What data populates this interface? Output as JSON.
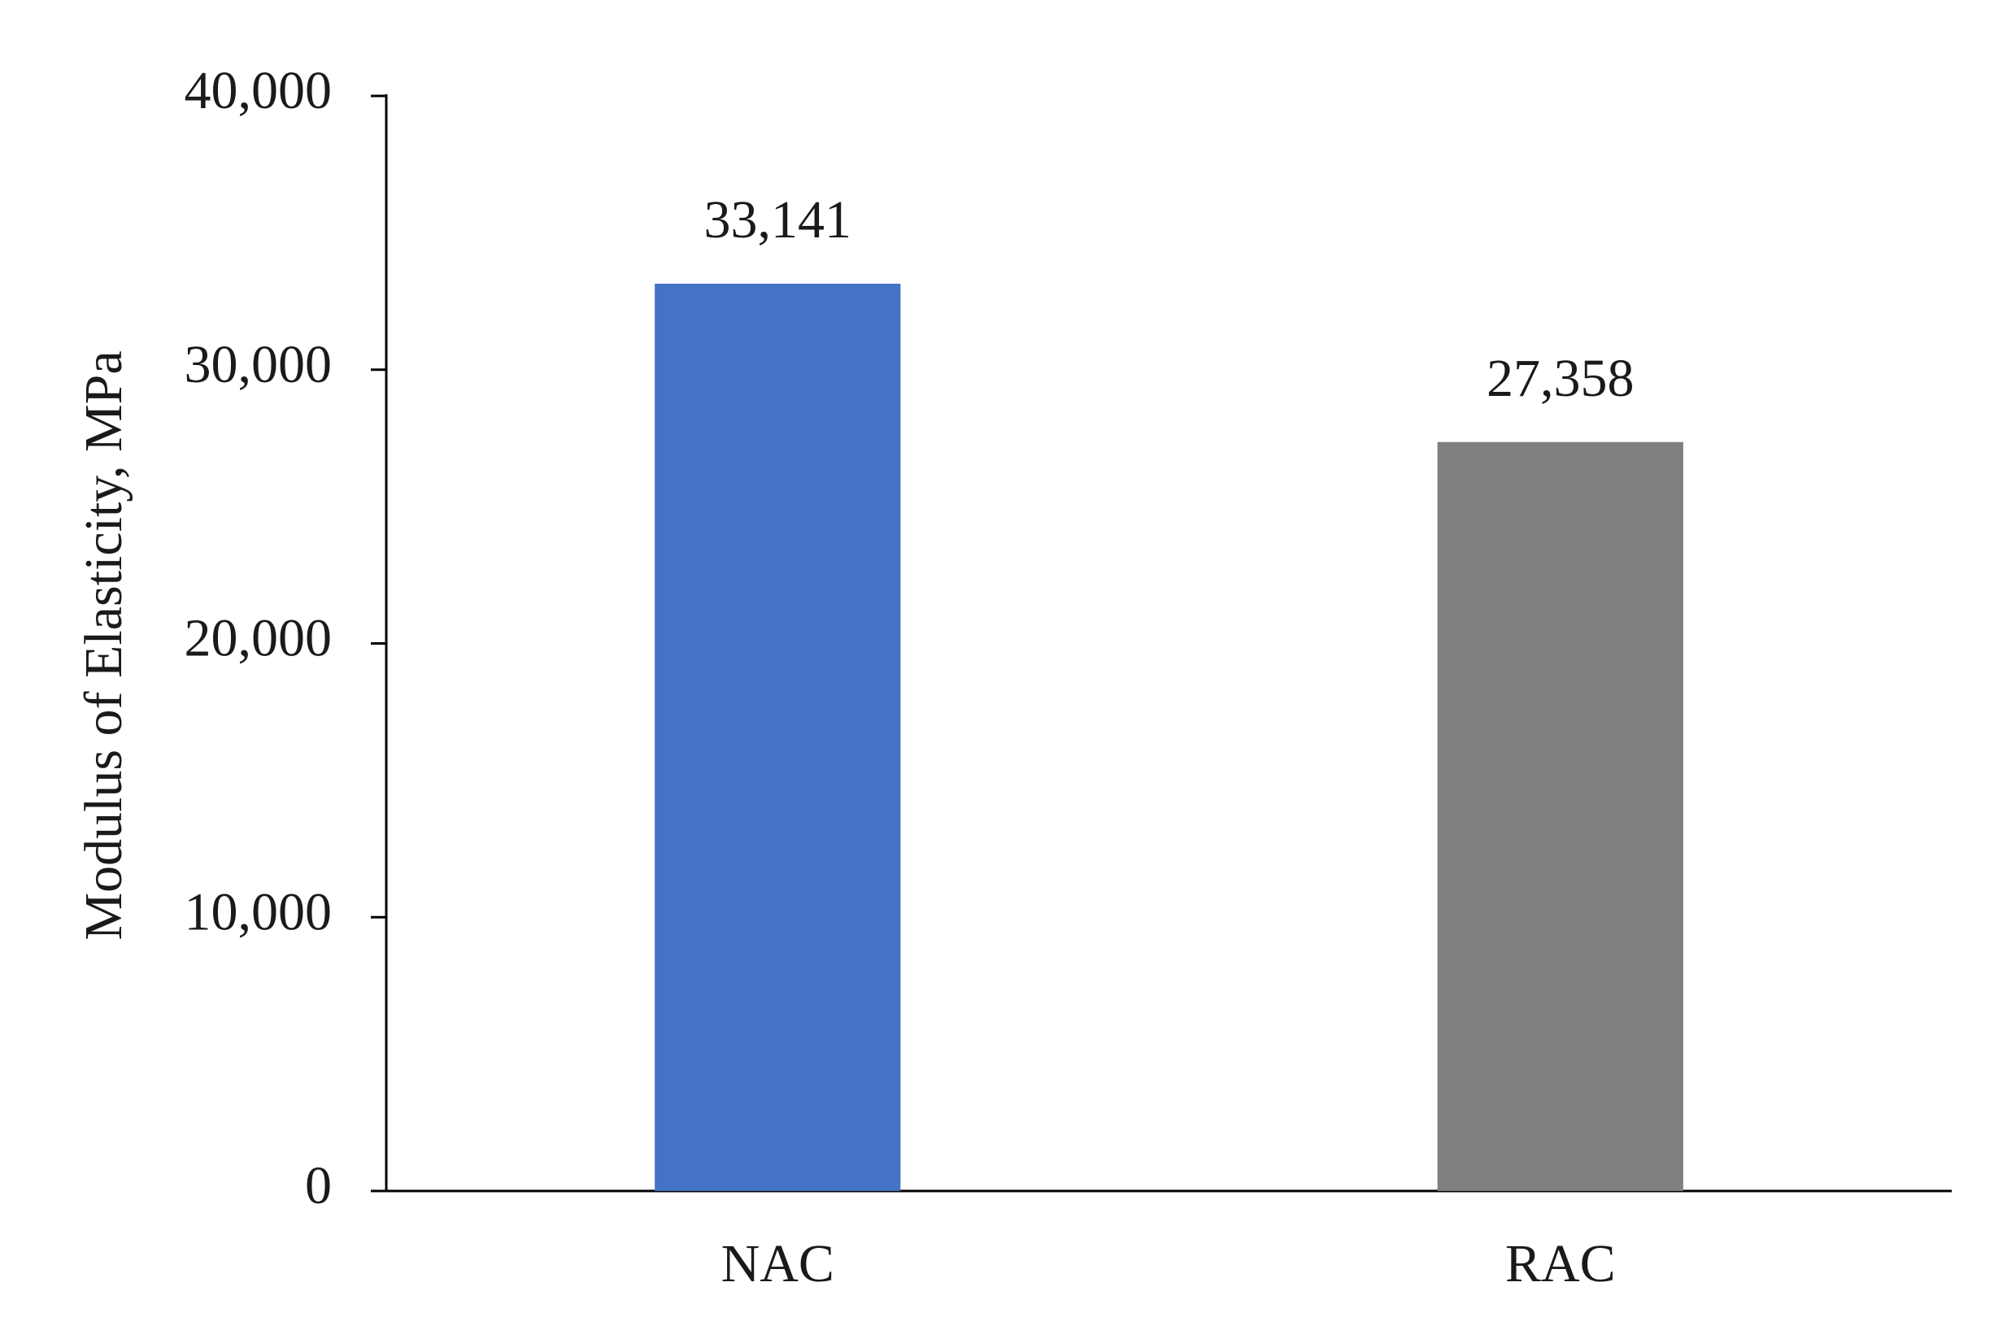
{
  "chart_data": {
    "type": "bar",
    "y_label": "Modulus of Elasticity, MPa",
    "categories": [
      "NAC",
      "RAC"
    ],
    "values": [
      33141,
      27358
    ],
    "value_labels": [
      "33,141",
      "27,358"
    ],
    "colors": [
      "#4472c4",
      "#7f7f7f"
    ],
    "ylim": [
      0,
      40000
    ],
    "yticks": [
      0,
      {
        "value": 10000,
        "label": "10,000"
      },
      {
        "value": 20000,
        "label": "20,000"
      },
      {
        "value": 30000,
        "label": "30,000"
      },
      {
        "value": 40000,
        "label": "40,000"
      }
    ],
    "grid": false
  }
}
